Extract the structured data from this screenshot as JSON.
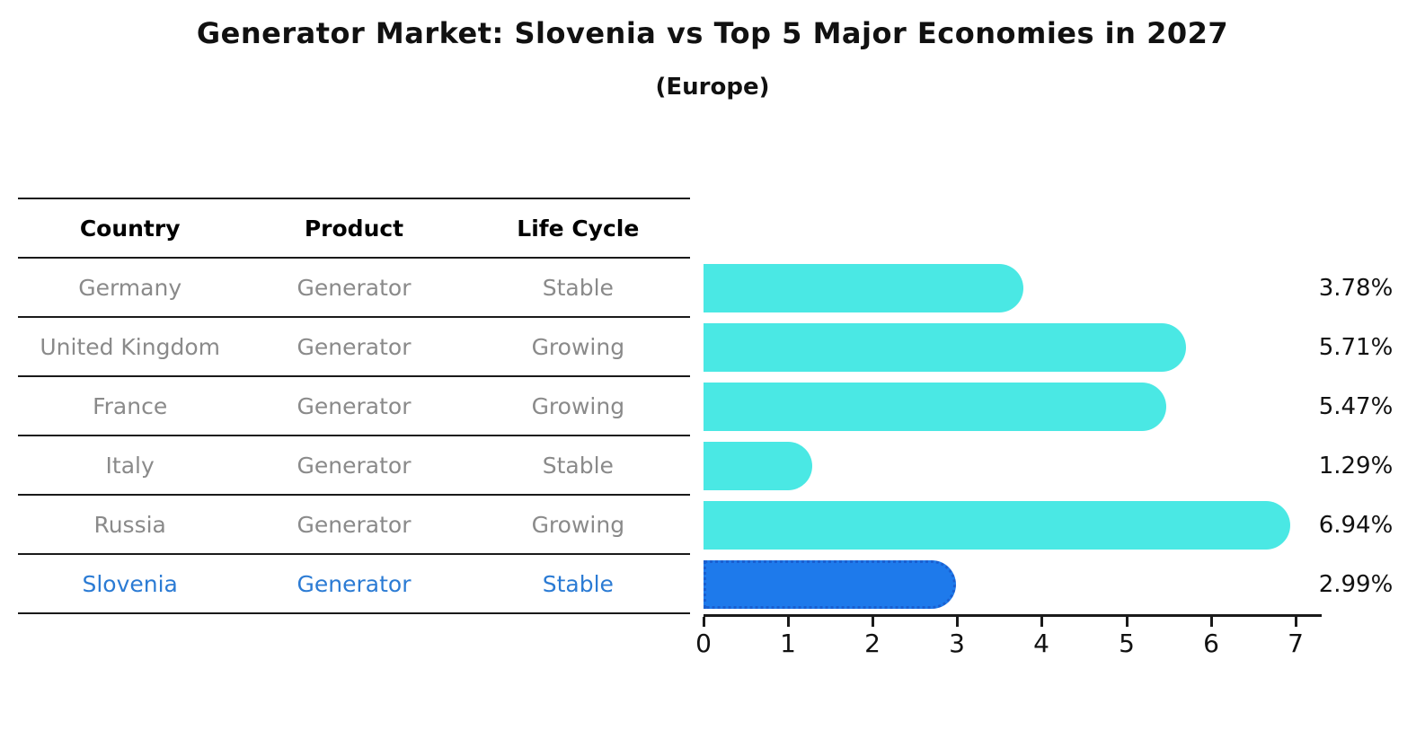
{
  "title": "Generator Market: Slovenia vs Top 5 Major Economies in 2027",
  "subtitle": "(Europe)",
  "table": {
    "headers": [
      "Country",
      "Product",
      "Life Cycle"
    ],
    "rows": [
      {
        "country": "Germany",
        "product": "Generator",
        "life_cycle": "Stable",
        "highlight": false
      },
      {
        "country": "United Kingdom",
        "product": "Generator",
        "life_cycle": "Growing",
        "highlight": false
      },
      {
        "country": "France",
        "product": "Generator",
        "life_cycle": "Growing",
        "highlight": false
      },
      {
        "country": "Italy",
        "product": "Generator",
        "life_cycle": "Stable",
        "highlight": false
      },
      {
        "country": "Russia",
        "product": "Generator",
        "life_cycle": "Growing",
        "highlight": false
      },
      {
        "country": "Slovenia",
        "product": "Generator",
        "life_cycle": "Stable",
        "highlight": true
      }
    ]
  },
  "chart_data": {
    "type": "bar",
    "orientation": "horizontal",
    "title": "Generator Market: Slovenia vs Top 5 Major Economies in 2027",
    "subtitle": "(Europe)",
    "categories": [
      "Germany",
      "United Kingdom",
      "France",
      "Italy",
      "Russia",
      "Slovenia"
    ],
    "values": [
      3.78,
      5.71,
      5.47,
      1.29,
      6.94,
      2.99
    ],
    "value_labels": [
      "3.78%",
      "5.71%",
      "5.47%",
      "1.29%",
      "6.94%",
      "2.99%"
    ],
    "highlight_category": "Slovenia",
    "xlabel": "",
    "ylabel": "",
    "xlim": [
      0,
      7.3
    ],
    "xticks": [
      0,
      1,
      2,
      3,
      4,
      5,
      6,
      7
    ],
    "grid": false,
    "legend": false
  },
  "colors": {
    "bar": "#4AE8E4",
    "highlight_bar": "#1E7AEB",
    "highlight_border": "#1A5FD0",
    "row_text": "#8a8a8a",
    "highlight_text": "#2B7BD4",
    "header_text": "#000000",
    "axis": "#1a1a1a"
  }
}
